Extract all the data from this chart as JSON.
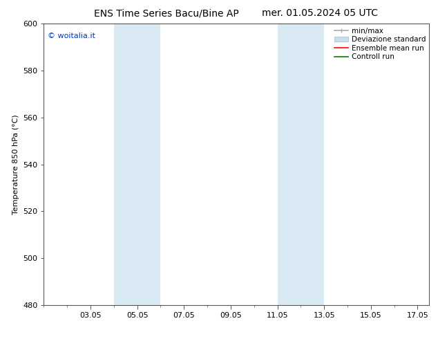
{
  "title_left": "ENS Time Series Bacu/Bine AP",
  "title_right": "mer. 01.05.2024 05 UTC",
  "ylabel": "Temperature 850 hPa (°C)",
  "ylim": [
    480,
    600
  ],
  "yticks": [
    480,
    500,
    520,
    540,
    560,
    580,
    600
  ],
  "xlim": [
    1.0,
    17.5
  ],
  "xtick_labels": [
    "03.05",
    "05.05",
    "07.05",
    "09.05",
    "11.05",
    "13.05",
    "15.05",
    "17.05"
  ],
  "xtick_positions": [
    3,
    5,
    7,
    9,
    11,
    13,
    15,
    17
  ],
  "minor_xtick_positions": [
    1,
    2,
    3,
    4,
    5,
    6,
    7,
    8,
    9,
    10,
    11,
    12,
    13,
    14,
    15,
    16,
    17
  ],
  "shaded_bands": [
    {
      "x_start": 4.0,
      "x_end": 6.0
    },
    {
      "x_start": 11.0,
      "x_end": 13.0
    }
  ],
  "shaded_color": "#daeaf5",
  "watermark_text": "© woitalia.it",
  "watermark_color": "#0033cc",
  "legend_entries": [
    {
      "label": "min/max"
    },
    {
      "label": "Deviazione standard"
    },
    {
      "label": "Ensemble mean run"
    },
    {
      "label": "Controll run"
    }
  ],
  "legend_colors": [
    "#aaaaaa",
    "#c8dff0",
    "red",
    "green"
  ],
  "bg_color": "#ffffff",
  "axes_bg": "#ffffff",
  "spine_color": "#555555",
  "title_fontsize": 10,
  "tick_fontsize": 8,
  "ylabel_fontsize": 8,
  "watermark_fontsize": 8,
  "legend_fontsize": 7.5
}
